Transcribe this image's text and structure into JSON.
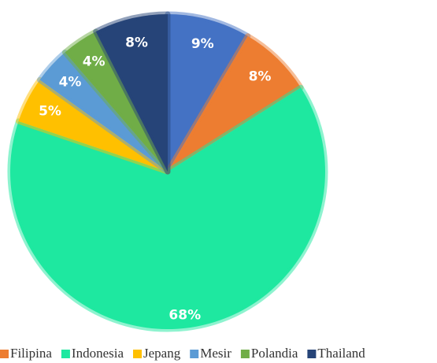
{
  "chart_data": {
    "type": "pie",
    "categories": [
      null,
      "Filipina",
      "Indonesia",
      "Jepang",
      "Mesir",
      "Polandia",
      "Thailand"
    ],
    "values": [
      9,
      8,
      68,
      5,
      4,
      4,
      8
    ],
    "value_labels": [
      "9%",
      "8%",
      "68%",
      "5%",
      "4%",
      "4%",
      "8%"
    ],
    "colors": [
      "#4472c4",
      "#ed7d31",
      "#1ee8a0",
      "#ffc000",
      "#5b9bd5",
      "#70ad47",
      "#264478"
    ],
    "legend": "bottom"
  }
}
